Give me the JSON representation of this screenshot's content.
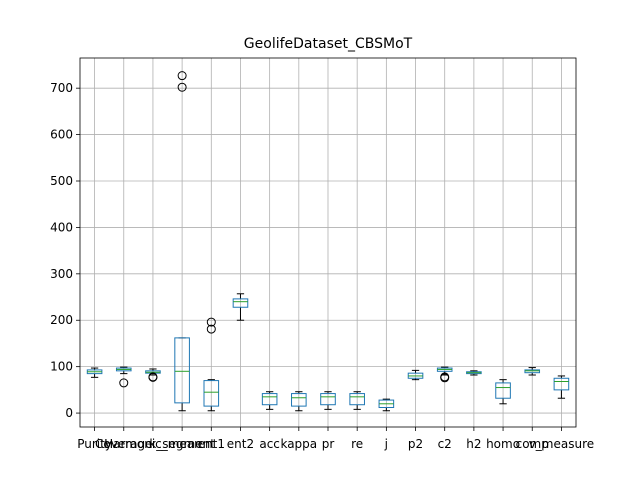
{
  "chart_data": {
    "type": "box",
    "title": "GeolifeDataset_CBSMoT",
    "xlabel": "",
    "ylabel": "",
    "ylim": [
      -30,
      765
    ],
    "yticks": [
      0,
      100,
      200,
      300,
      400,
      500,
      600,
      700
    ],
    "grid": true,
    "colors": {
      "box": "#1f77b4",
      "median": "#2ca02c",
      "whisker": "#000000",
      "grid": "#b0b0b0"
    },
    "series": [
      {
        "name": "Purity",
        "whisker_low": 77,
        "q1": 85,
        "median": 89,
        "q3": 93,
        "whisker_high": 97,
        "fliers": []
      },
      {
        "name": "Coverage",
        "whisker_low": 85,
        "q1": 91,
        "median": 94,
        "q3": 97,
        "whisker_high": 99,
        "fliers": [
          65
        ]
      },
      {
        "name": "Harmonic_mean",
        "whisker_low": 82,
        "q1": 86,
        "median": 88,
        "q3": 91,
        "whisker_high": 95,
        "fliers": [
          78,
          77
        ]
      },
      {
        "name": "k_segment",
        "whisker_low": 5,
        "q1": 22,
        "median": 90,
        "q3": 162,
        "whisker_high": 162,
        "fliers": [
          727,
          702
        ]
      },
      {
        "name": "ent1",
        "whisker_low": 5,
        "q1": 15,
        "median": 45,
        "q3": 70,
        "whisker_high": 72,
        "fliers": [
          196,
          181
        ]
      },
      {
        "name": "ent2",
        "whisker_low": 200,
        "q1": 228,
        "median": 240,
        "q3": 246,
        "whisker_high": 257,
        "fliers": []
      },
      {
        "name": "acc",
        "whisker_low": 8,
        "q1": 18,
        "median": 35,
        "q3": 42,
        "whisker_high": 46,
        "fliers": []
      },
      {
        "name": "kappa",
        "whisker_low": 5,
        "q1": 15,
        "median": 33,
        "q3": 42,
        "whisker_high": 46,
        "fliers": []
      },
      {
        "name": "pr",
        "whisker_low": 8,
        "q1": 18,
        "median": 35,
        "q3": 42,
        "whisker_high": 46,
        "fliers": []
      },
      {
        "name": "re",
        "whisker_low": 8,
        "q1": 18,
        "median": 35,
        "q3": 42,
        "whisker_high": 46,
        "fliers": []
      },
      {
        "name": "j",
        "whisker_low": 5,
        "q1": 12,
        "median": 20,
        "q3": 28,
        "whisker_high": 30,
        "fliers": []
      },
      {
        "name": "p2",
        "whisker_low": 72,
        "q1": 75,
        "median": 80,
        "q3": 86,
        "whisker_high": 92,
        "fliers": []
      },
      {
        "name": "c2",
        "whisker_low": 82,
        "q1": 90,
        "median": 94,
        "q3": 97,
        "whisker_high": 99,
        "fliers": [
          78,
          76
        ]
      },
      {
        "name": "h2",
        "whisker_low": 82,
        "q1": 85,
        "median": 87,
        "q3": 89,
        "whisker_high": 91,
        "fliers": []
      },
      {
        "name": "homo",
        "whisker_low": 20,
        "q1": 32,
        "median": 55,
        "q3": 65,
        "whisker_high": 72,
        "fliers": []
      },
      {
        "name": "comp",
        "whisker_low": 82,
        "q1": 87,
        "median": 91,
        "q3": 93,
        "whisker_high": 98,
        "fliers": []
      },
      {
        "name": "v_measure",
        "whisker_low": 32,
        "q1": 50,
        "median": 68,
        "q3": 75,
        "whisker_high": 80,
        "fliers": []
      }
    ]
  }
}
